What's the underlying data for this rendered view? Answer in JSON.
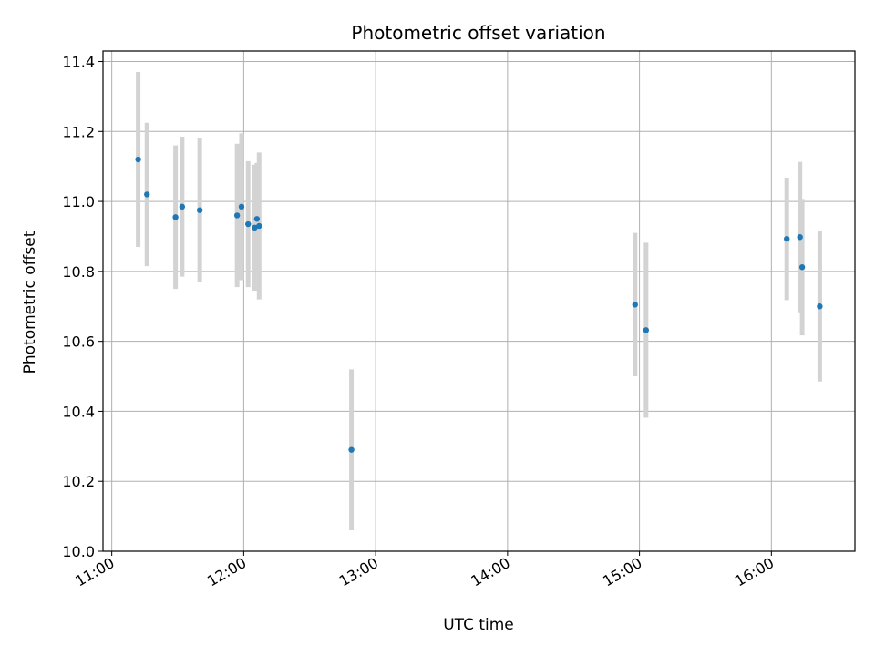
{
  "chart_data": {
    "type": "scatter",
    "title": "Photometric offset variation",
    "xlabel": "UTC time",
    "ylabel": "Photometric offset",
    "x_ticks": [
      "11:00",
      "12:00",
      "13:00",
      "14:00",
      "15:00",
      "16:00"
    ],
    "y_ticks": [
      "10.0",
      "10.2",
      "10.4",
      "10.6",
      "10.8",
      "11.0",
      "11.2",
      "11.4"
    ],
    "ylim": [
      10.0,
      11.43
    ],
    "xlim": [
      "10:56",
      "16:38"
    ],
    "grid": true,
    "point_color": "#1f77b4",
    "errorbar_color": "#d3d3d3",
    "points": [
      {
        "time": "11:12",
        "y": 11.12,
        "err": 0.25
      },
      {
        "time": "11:16",
        "y": 11.02,
        "err": 0.205
      },
      {
        "time": "11:29",
        "y": 10.955,
        "err": 0.205
      },
      {
        "time": "11:32",
        "y": 10.985,
        "err": 0.2
      },
      {
        "time": "11:40",
        "y": 10.975,
        "err": 0.205
      },
      {
        "time": "11:57",
        "y": 10.96,
        "err": 0.205
      },
      {
        "time": "11:59",
        "y": 10.985,
        "err": 0.21
      },
      {
        "time": "12:02",
        "y": 10.935,
        "err": 0.18
      },
      {
        "time": "12:05",
        "y": 10.925,
        "err": 0.18
      },
      {
        "time": "12:06",
        "y": 10.95,
        "err": 0.16
      },
      {
        "time": "12:07",
        "y": 10.93,
        "err": 0.21
      },
      {
        "time": "12:49",
        "y": 10.29,
        "err": 0.23
      },
      {
        "time": "14:58",
        "y": 10.705,
        "err": 0.205
      },
      {
        "time": "15:03",
        "y": 10.632,
        "err": 0.25
      },
      {
        "time": "16:07",
        "y": 10.893,
        "err": 0.175
      },
      {
        "time": "16:13",
        "y": 10.898,
        "err": 0.215
      },
      {
        "time": "16:14",
        "y": 10.812,
        "err": 0.195
      },
      {
        "time": "16:22",
        "y": 10.7,
        "err": 0.215
      }
    ]
  }
}
